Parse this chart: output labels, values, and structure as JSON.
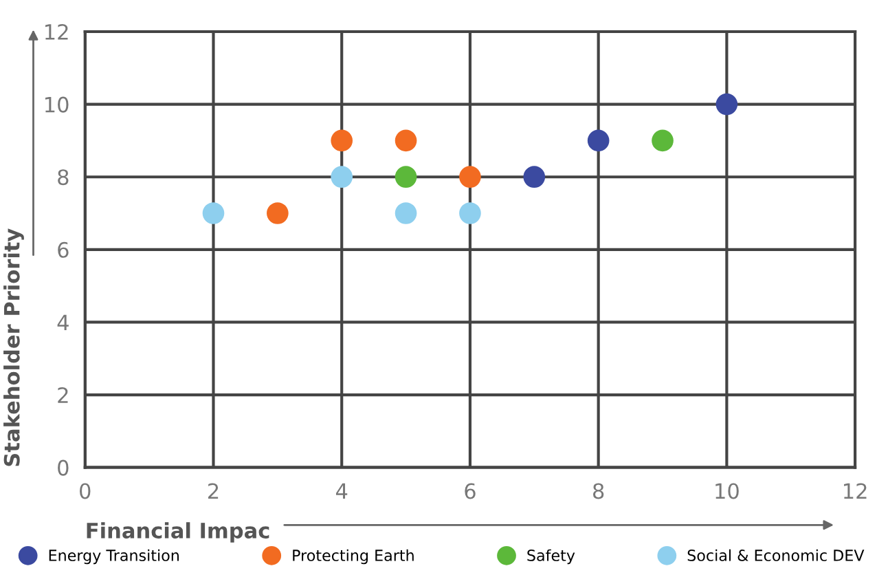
{
  "chart_data": {
    "type": "scatter",
    "xlabel": "Financial Impac",
    "ylabel": "Stakeholder Priority",
    "xlim": [
      0,
      12
    ],
    "ylim": [
      0,
      12
    ],
    "xticks": [
      0,
      2,
      4,
      6,
      8,
      10,
      12
    ],
    "yticks": [
      0,
      2,
      4,
      6,
      8,
      10,
      12
    ],
    "grid": true,
    "legend": "bottom",
    "marker": "circle",
    "series": [
      {
        "name": "Energy Transition",
        "color": "#3b4aa0",
        "x": [
          7,
          8,
          10
        ],
        "values": [
          8,
          9,
          10
        ]
      },
      {
        "name": "Protecting Earth",
        "color": "#f26b21",
        "x": [
          3,
          4,
          5,
          6
        ],
        "values": [
          7,
          9,
          9,
          8
        ]
      },
      {
        "name": "Safety",
        "color": "#5cb83a",
        "x": [
          5,
          9
        ],
        "values": [
          8,
          9
        ]
      },
      {
        "name": "Social & Economic DEV",
        "color": "#8ecfee",
        "x": [
          2,
          4,
          5,
          6
        ],
        "values": [
          7,
          8,
          7,
          7
        ]
      }
    ]
  }
}
